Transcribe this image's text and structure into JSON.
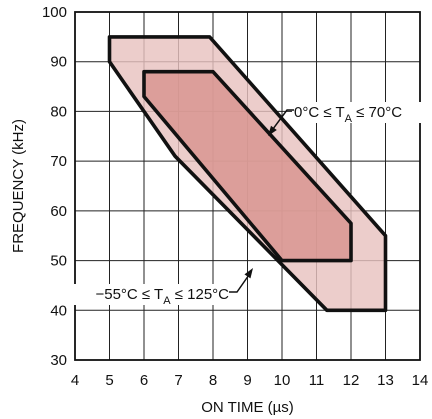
{
  "chart_data": {
    "type": "area",
    "title": "",
    "xlabel": "ON TIME (µs)",
    "ylabel": "FREQUENCY (kHz)",
    "xlim": [
      4,
      14
    ],
    "ylim": [
      30,
      100
    ],
    "x_ticks": [
      "4",
      "5",
      "6",
      "7",
      "8",
      "9",
      "10",
      "11",
      "12",
      "13",
      "14"
    ],
    "y_ticks": [
      "30",
      "40",
      "50",
      "60",
      "70",
      "80",
      "90",
      "100"
    ],
    "grid": true,
    "series": [
      {
        "label": "−55°C ≤ TA ≤ 125°C",
        "label_parts": [
          "−55°C ≤ T",
          "A",
          " ≤ 125°C"
        ],
        "fill": "#e8c2c0",
        "outline": [
          [
            5.0,
            90.0
          ],
          [
            5.0,
            95.0
          ],
          [
            7.9,
            95.0
          ],
          [
            13.0,
            55.0
          ],
          [
            13.0,
            40.0
          ],
          [
            11.3,
            40.0
          ],
          [
            6.9,
            71.0
          ]
        ]
      },
      {
        "label": "0°C ≤ TA ≤ 70°C",
        "label_parts": [
          "0°C ≤ T",
          "A",
          " ≤ 70°C"
        ],
        "fill": "#d8948f",
        "outline": [
          [
            6.0,
            83.0
          ],
          [
            6.0,
            88.0
          ],
          [
            8.0,
            88.0
          ],
          [
            12.0,
            57.5
          ],
          [
            12.0,
            50.0
          ],
          [
            10.0,
            50.0
          ]
        ]
      }
    ]
  }
}
